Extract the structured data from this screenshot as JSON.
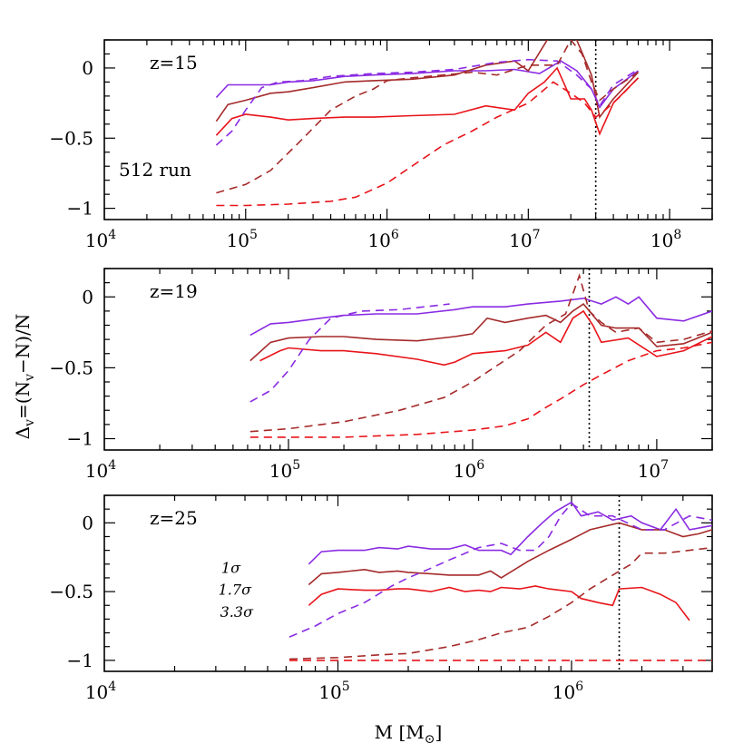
{
  "colors": {
    "purple": "#8a2be2",
    "brown": "#a52a2a",
    "red": "#e8141a",
    "axis": "#000000"
  },
  "figure": {
    "ylabel": "Δ_v=(N_v−N)/N",
    "xlabel": "M [M_⊙]"
  },
  "chart_data": [
    {
      "type": "line",
      "panel_label": "z=15",
      "annotation": "512 run",
      "xscale": "log",
      "xlim": [
        10000,
        200000000
      ],
      "ylim": [
        -1.08,
        0.2
      ],
      "x_ticks": [
        {
          "value": 10000,
          "base": "10",
          "exp": "4"
        },
        {
          "value": 100000,
          "base": "10",
          "exp": "5"
        },
        {
          "value": 1000000,
          "base": "10",
          "exp": "6"
        },
        {
          "value": 10000000,
          "base": "10",
          "exp": "7"
        },
        {
          "value": 100000000,
          "base": "10",
          "exp": "8"
        }
      ],
      "y_ticks": [
        {
          "value": 0,
          "label": "0"
        },
        {
          "value": -0.5,
          "label": "−0.5"
        },
        {
          "value": -1,
          "label": "−1"
        }
      ],
      "vline": 30000000,
      "series": [
        {
          "color": "purple",
          "style": "solid",
          "x": [
            62000,
            75000,
            100000,
            150000,
            200000,
            300000,
            500000,
            800000,
            1500000,
            3000000,
            5000000,
            8000000,
            12000000,
            17000000,
            22000000,
            28000000,
            32000000,
            40000000,
            60000000
          ],
          "y": [
            -0.21,
            -0.12,
            -0.12,
            -0.12,
            -0.1,
            -0.09,
            -0.06,
            -0.05,
            -0.04,
            -0.02,
            -0.02,
            -0.01,
            -0.04,
            0.05,
            -0.02,
            -0.15,
            -0.28,
            -0.15,
            -0.02
          ]
        },
        {
          "color": "brown",
          "style": "solid",
          "x": [
            62000,
            75000,
            100000,
            150000,
            200000,
            300000,
            500000,
            800000,
            1500000,
            3000000,
            5000000,
            8000000,
            10000000,
            14000000,
            18000000,
            22000000,
            28000000,
            32000000,
            40000000,
            60000000
          ],
          "y": [
            -0.38,
            -0.26,
            -0.23,
            -0.18,
            -0.17,
            -0.14,
            -0.1,
            -0.09,
            -0.08,
            -0.05,
            0.02,
            0.05,
            -0.02,
            0.22,
            0.25,
            0.2,
            -0.05,
            -0.35,
            -0.22,
            -0.03
          ]
        },
        {
          "color": "red",
          "style": "solid",
          "x": [
            62000,
            80000,
            100000,
            150000,
            200000,
            300000,
            500000,
            800000,
            1500000,
            3000000,
            5000000,
            8000000,
            10000000,
            13000000,
            16000000,
            20000000,
            25000000,
            28000000,
            32000000,
            40000000,
            60000000
          ],
          "y": [
            -0.48,
            -0.36,
            -0.33,
            -0.35,
            -0.37,
            -0.36,
            -0.35,
            -0.35,
            -0.34,
            -0.33,
            -0.27,
            -0.3,
            -0.18,
            -0.1,
            0.0,
            -0.22,
            -0.22,
            -0.3,
            -0.47,
            -0.25,
            -0.07
          ]
        },
        {
          "color": "purple",
          "style": "dashed",
          "x": [
            62000,
            80000,
            100000,
            130000,
            170000,
            250000,
            400000,
            800000,
            1500000,
            3000000,
            6000000,
            10000000,
            16000000,
            22000000,
            28000000,
            32000000,
            40000000,
            60000000
          ],
          "y": [
            -0.55,
            -0.45,
            -0.3,
            -0.14,
            -0.1,
            -0.09,
            -0.06,
            -0.04,
            -0.03,
            -0.01,
            0.04,
            0.06,
            0.05,
            -0.05,
            -0.15,
            -0.27,
            -0.12,
            -0.01
          ]
        },
        {
          "color": "brown",
          "style": "dashed",
          "x": [
            62000,
            100000,
            150000,
            250000,
            400000,
            600000,
            800000,
            1000000,
            1500000,
            2500000,
            4000000,
            6000000,
            10000000,
            16000000,
            20000000,
            24000000,
            28000000,
            32000000,
            40000000,
            60000000
          ],
          "y": [
            -0.89,
            -0.83,
            -0.73,
            -0.51,
            -0.3,
            -0.2,
            -0.15,
            -0.09,
            -0.07,
            -0.05,
            -0.03,
            -0.05,
            0.02,
            0.02,
            0.2,
            0.1,
            -0.1,
            -0.23,
            -0.15,
            -0.03
          ]
        },
        {
          "color": "red",
          "style": "dashed",
          "x": [
            62000,
            100000,
            200000,
            400000,
            600000,
            1000000,
            1500000,
            2500000,
            4000000,
            6000000,
            10000000,
            15000000,
            20000000,
            25000000,
            30000000,
            35000000,
            45000000,
            60000000
          ],
          "y": [
            -0.98,
            -0.98,
            -0.97,
            -0.95,
            -0.92,
            -0.82,
            -0.7,
            -0.55,
            -0.45,
            -0.35,
            -0.25,
            -0.1,
            -0.18,
            -0.25,
            -0.35,
            -0.3,
            -0.2,
            -0.07
          ]
        }
      ]
    },
    {
      "type": "line",
      "panel_label": "z=19",
      "xscale": "log",
      "xlim": [
        10000,
        20000000
      ],
      "ylim": [
        -1.08,
        0.2
      ],
      "x_ticks": [
        {
          "value": 10000,
          "base": "10",
          "exp": "4"
        },
        {
          "value": 100000,
          "base": "10",
          "exp": "5"
        },
        {
          "value": 1000000,
          "base": "10",
          "exp": "6"
        },
        {
          "value": 10000000,
          "base": "10",
          "exp": "7"
        }
      ],
      "y_ticks": [
        {
          "value": 0,
          "label": "0"
        },
        {
          "value": -0.5,
          "label": "−0.5"
        },
        {
          "value": -1,
          "label": "−1"
        }
      ],
      "vline": 4300000,
      "series": [
        {
          "color": "purple",
          "style": "solid",
          "x": [
            62000,
            80000,
            100000,
            150000,
            200000,
            300000,
            500000,
            800000,
            1000000,
            1500000,
            2000000,
            3000000,
            4000000,
            5000000,
            6000000,
            7000000,
            8000000,
            10000000,
            14000000,
            20000000
          ],
          "y": [
            -0.27,
            -0.19,
            -0.18,
            -0.15,
            -0.13,
            -0.12,
            -0.12,
            -0.09,
            -0.07,
            -0.07,
            -0.05,
            -0.03,
            -0.01,
            -0.05,
            0.0,
            -0.05,
            0.0,
            -0.15,
            -0.17,
            -0.1
          ]
        },
        {
          "color": "brown",
          "style": "solid",
          "x": [
            62000,
            80000,
            100000,
            150000,
            200000,
            300000,
            500000,
            800000,
            1000000,
            1200000,
            1500000,
            2000000,
            2500000,
            3000000,
            3500000,
            4000000,
            5000000,
            6000000,
            8000000,
            10000000,
            14000000,
            20000000
          ],
          "y": [
            -0.45,
            -0.32,
            -0.29,
            -0.28,
            -0.28,
            -0.3,
            -0.31,
            -0.28,
            -0.26,
            -0.15,
            -0.18,
            -0.15,
            -0.13,
            -0.18,
            -0.1,
            -0.05,
            -0.2,
            -0.22,
            -0.22,
            -0.35,
            -0.33,
            -0.25
          ]
        },
        {
          "color": "red",
          "style": "solid",
          "x": [
            70000,
            90000,
            100000,
            150000,
            200000,
            300000,
            500000,
            700000,
            800000,
            1000000,
            1500000,
            2000000,
            2500000,
            3000000,
            3500000,
            4000000,
            4500000,
            5000000,
            7000000,
            10000000,
            14000000,
            20000000
          ],
          "y": [
            -0.45,
            -0.38,
            -0.36,
            -0.38,
            -0.38,
            -0.4,
            -0.44,
            -0.48,
            -0.46,
            -0.4,
            -0.38,
            -0.34,
            -0.25,
            -0.32,
            -0.15,
            -0.1,
            -0.2,
            -0.32,
            -0.29,
            -0.42,
            -0.38,
            -0.28
          ]
        },
        {
          "color": "purple",
          "style": "dashed",
          "x": [
            62000,
            80000,
            100000,
            130000,
            170000,
            250000,
            400000,
            750000
          ],
          "y": [
            -0.74,
            -0.66,
            -0.52,
            -0.3,
            -0.15,
            -0.1,
            -0.09,
            -0.05
          ]
        },
        {
          "color": "brown",
          "style": "dashed",
          "x": [
            62000,
            100000,
            200000,
            400000,
            700000,
            1000000,
            1300000,
            1800000,
            2500000,
            3200000,
            3800000,
            4300000,
            5000000,
            6000000,
            8000000,
            10000000,
            14000000,
            20000000
          ],
          "y": [
            -0.95,
            -0.93,
            -0.88,
            -0.8,
            -0.71,
            -0.6,
            -0.5,
            -0.38,
            -0.2,
            -0.12,
            0.15,
            -0.1,
            -0.18,
            -0.25,
            -0.22,
            -0.32,
            -0.3,
            -0.24
          ]
        },
        {
          "color": "red",
          "style": "dashed",
          "x": [
            62000,
            100000,
            200000,
            500000,
            1000000,
            1500000,
            2000000,
            2500000,
            3000000,
            4000000,
            5000000,
            7000000,
            10000000,
            14000000,
            20000000
          ],
          "y": [
            -0.99,
            -0.99,
            -0.99,
            -0.97,
            -0.94,
            -0.91,
            -0.86,
            -0.78,
            -0.72,
            -0.62,
            -0.55,
            -0.45,
            -0.38,
            -0.36,
            -0.32
          ]
        }
      ]
    },
    {
      "type": "line",
      "panel_label": "z=25",
      "xscale": "log",
      "xlim": [
        10000,
        4000000
      ],
      "ylim": [
        -1.08,
        0.2
      ],
      "x_ticks": [
        {
          "value": 10000,
          "base": "10",
          "exp": "4"
        },
        {
          "value": 100000,
          "base": "10",
          "exp": "5"
        },
        {
          "value": 1000000,
          "base": "10",
          "exp": "6"
        }
      ],
      "y_ticks": [
        {
          "value": 0,
          "label": "0"
        },
        {
          "value": -0.5,
          "label": "−0.5"
        },
        {
          "value": -1,
          "label": "−1"
        }
      ],
      "vline": 1600000,
      "series_labels": [
        "1σ",
        "1.7σ",
        "3.3σ"
      ],
      "series": [
        {
          "color": "purple",
          "style": "solid",
          "x": [
            75000,
            85000,
            100000,
            130000,
            150000,
            180000,
            200000,
            250000,
            300000,
            350000,
            400000,
            500000,
            550000,
            650000,
            750000,
            850000,
            1000000,
            1100000,
            1300000,
            1500000,
            1800000,
            2000000,
            2400000,
            2800000,
            3200000,
            4000000
          ],
          "y": [
            -0.3,
            -0.21,
            -0.2,
            -0.2,
            -0.18,
            -0.19,
            -0.17,
            -0.19,
            -0.19,
            -0.16,
            -0.2,
            -0.2,
            -0.23,
            -0.1,
            0.0,
            0.08,
            0.15,
            0.05,
            0.08,
            0.02,
            0.05,
            0.0,
            -0.05,
            0.1,
            -0.05,
            -0.02
          ]
        },
        {
          "color": "brown",
          "style": "solid",
          "x": [
            75000,
            85000,
            100000,
            130000,
            150000,
            180000,
            200000,
            250000,
            300000,
            350000,
            400000,
            450000,
            500000,
            650000,
            800000,
            1000000,
            1200000,
            1600000,
            2000000,
            2500000,
            3000000,
            3500000,
            4000000
          ],
          "y": [
            -0.45,
            -0.37,
            -0.36,
            -0.34,
            -0.36,
            -0.35,
            -0.36,
            -0.37,
            -0.38,
            -0.38,
            -0.38,
            -0.35,
            -0.4,
            -0.28,
            -0.2,
            -0.12,
            -0.05,
            0.0,
            -0.05,
            -0.05,
            -0.1,
            -0.08,
            -0.05
          ]
        },
        {
          "color": "red",
          "style": "solid",
          "x": [
            75000,
            85000,
            100000,
            130000,
            150000,
            180000,
            200000,
            250000,
            300000,
            350000,
            400000,
            450000,
            500000,
            600000,
            700000,
            800000,
            1000000,
            1100000,
            1300000,
            1500000,
            1600000,
            2000000,
            2400000,
            2800000,
            3200000
          ],
          "y": [
            -0.6,
            -0.52,
            -0.48,
            -0.49,
            -0.49,
            -0.48,
            -0.48,
            -0.5,
            -0.47,
            -0.5,
            -0.49,
            -0.5,
            -0.47,
            -0.48,
            -0.46,
            -0.48,
            -0.5,
            -0.55,
            -0.58,
            -0.6,
            -0.48,
            -0.47,
            -0.52,
            -0.58,
            -0.71
          ]
        },
        {
          "color": "purple",
          "style": "dashed",
          "x": [
            62000,
            80000,
            100000,
            130000,
            170000,
            200000,
            250000,
            300000,
            400000,
            500000,
            600000,
            700000,
            800000,
            900000,
            1000000,
            1200000,
            1500000,
            2000000,
            2500000,
            3200000,
            4000000
          ],
          "y": [
            -0.83,
            -0.75,
            -0.66,
            -0.58,
            -0.46,
            -0.4,
            -0.33,
            -0.27,
            -0.18,
            -0.15,
            -0.2,
            -0.2,
            -0.1,
            0.05,
            0.14,
            0.05,
            0.05,
            -0.05,
            -0.05,
            0.05,
            0.02
          ]
        },
        {
          "color": "brown",
          "style": "dashed",
          "x": [
            62000,
            100000,
            150000,
            200000,
            300000,
            400000,
            500000,
            650000,
            800000,
            1000000,
            1200000,
            1500000,
            1800000,
            2000000,
            2500000,
            3200000,
            4000000
          ],
          "y": [
            -0.99,
            -0.98,
            -0.96,
            -0.95,
            -0.9,
            -0.85,
            -0.8,
            -0.76,
            -0.68,
            -0.58,
            -0.48,
            -0.38,
            -0.3,
            -0.22,
            -0.22,
            -0.2,
            -0.18
          ]
        },
        {
          "color": "red",
          "style": "dashed",
          "x": [
            62000,
            100000,
            200000,
            400000,
            800000,
            1600000,
            3200000,
            4000000
          ],
          "y": [
            -1.0,
            -1.0,
            -1.0,
            -1.0,
            -1.0,
            -1.0,
            -1.0,
            -1.0
          ]
        }
      ]
    }
  ]
}
